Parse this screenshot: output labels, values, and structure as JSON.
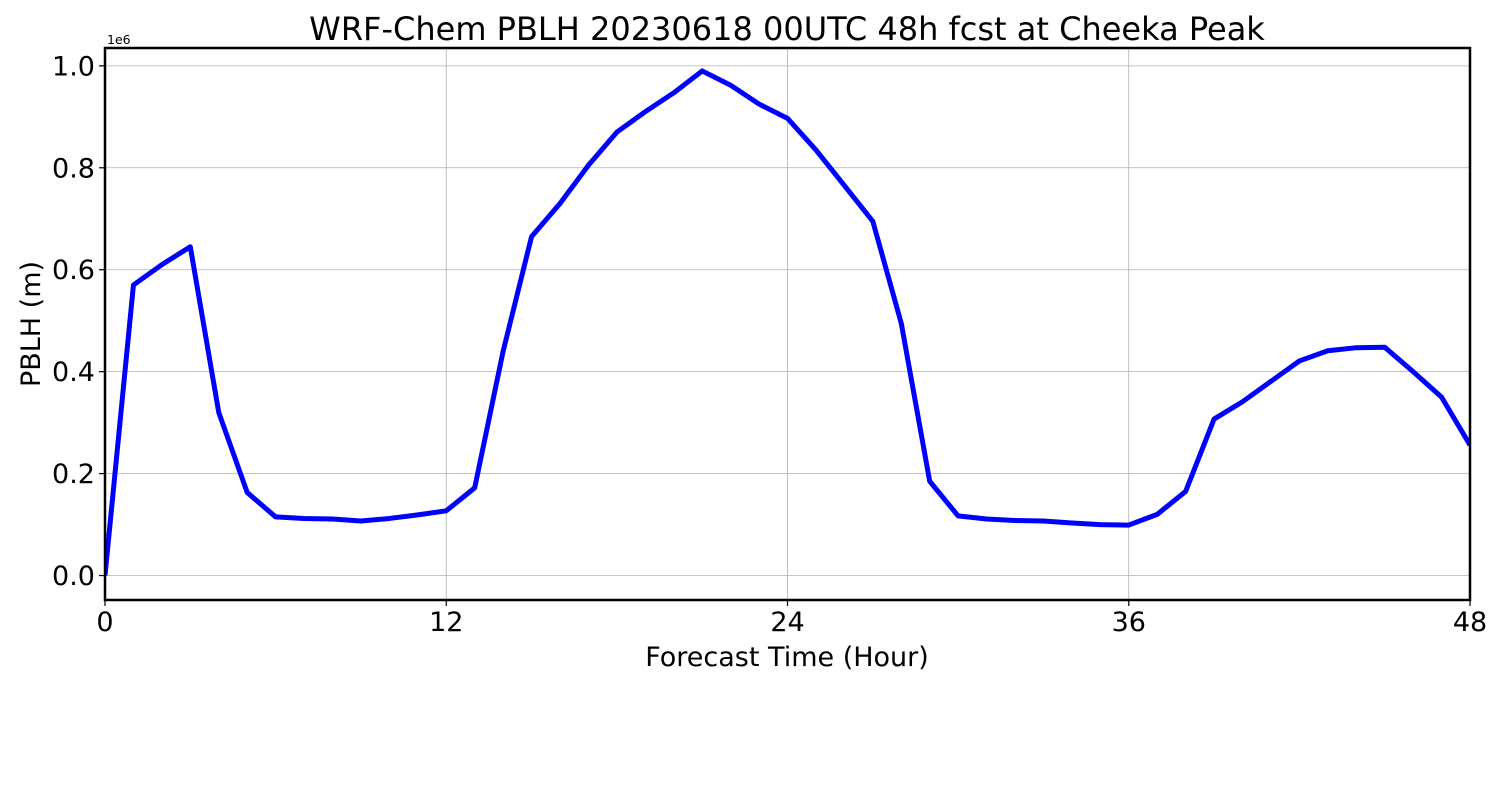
{
  "chart_data": {
    "type": "line",
    "title": "WRF-Chem PBLH  20230618 00UTC 48h fcst at Cheeka Peak",
    "xlabel": "Forecast Time (Hour)",
    "ylabel": "PBLH  (m)",
    "y_offset_label": "1e6",
    "xlim": [
      0,
      48
    ],
    "ylim": [
      -0.048,
      1.035
    ],
    "x_ticks": [
      0,
      12,
      24,
      36,
      48
    ],
    "x_tick_labels": [
      "0",
      "12",
      "24",
      "36",
      "48"
    ],
    "y_ticks": [
      0.0,
      0.2,
      0.4,
      0.6,
      0.8,
      1.0
    ],
    "y_tick_labels": [
      "0.0",
      "0.2",
      "0.4",
      "0.6",
      "0.8",
      "1.0"
    ],
    "grid": true,
    "series": [
      {
        "color": "#0000ff",
        "x": [
          0,
          1,
          2,
          3,
          4,
          5,
          6,
          7,
          8,
          9,
          10,
          11,
          12,
          13,
          14,
          15,
          16,
          17,
          18,
          19,
          20,
          21,
          22,
          23,
          24,
          25,
          26,
          27,
          28,
          29,
          30,
          31,
          32,
          33,
          34,
          35,
          36,
          37,
          38,
          39,
          40,
          41,
          42,
          43,
          44,
          45,
          46,
          47,
          48
        ],
        "y": [
          0.0,
          0.57,
          0.61,
          0.645,
          0.32,
          0.163,
          0.115,
          0.112,
          0.111,
          0.107,
          0.112,
          0.119,
          0.127,
          0.172,
          0.44,
          0.665,
          0.73,
          0.805,
          0.87,
          0.91,
          0.947,
          0.99,
          0.962,
          0.925,
          0.897,
          0.835,
          0.765,
          0.695,
          0.495,
          0.185,
          0.117,
          0.111,
          0.108,
          0.107,
          0.103,
          0.1,
          0.099,
          0.12,
          0.165,
          0.307,
          0.341,
          0.381,
          0.421,
          0.441,
          0.447,
          0.448,
          0.4,
          0.35,
          0.256
        ]
      }
    ]
  }
}
